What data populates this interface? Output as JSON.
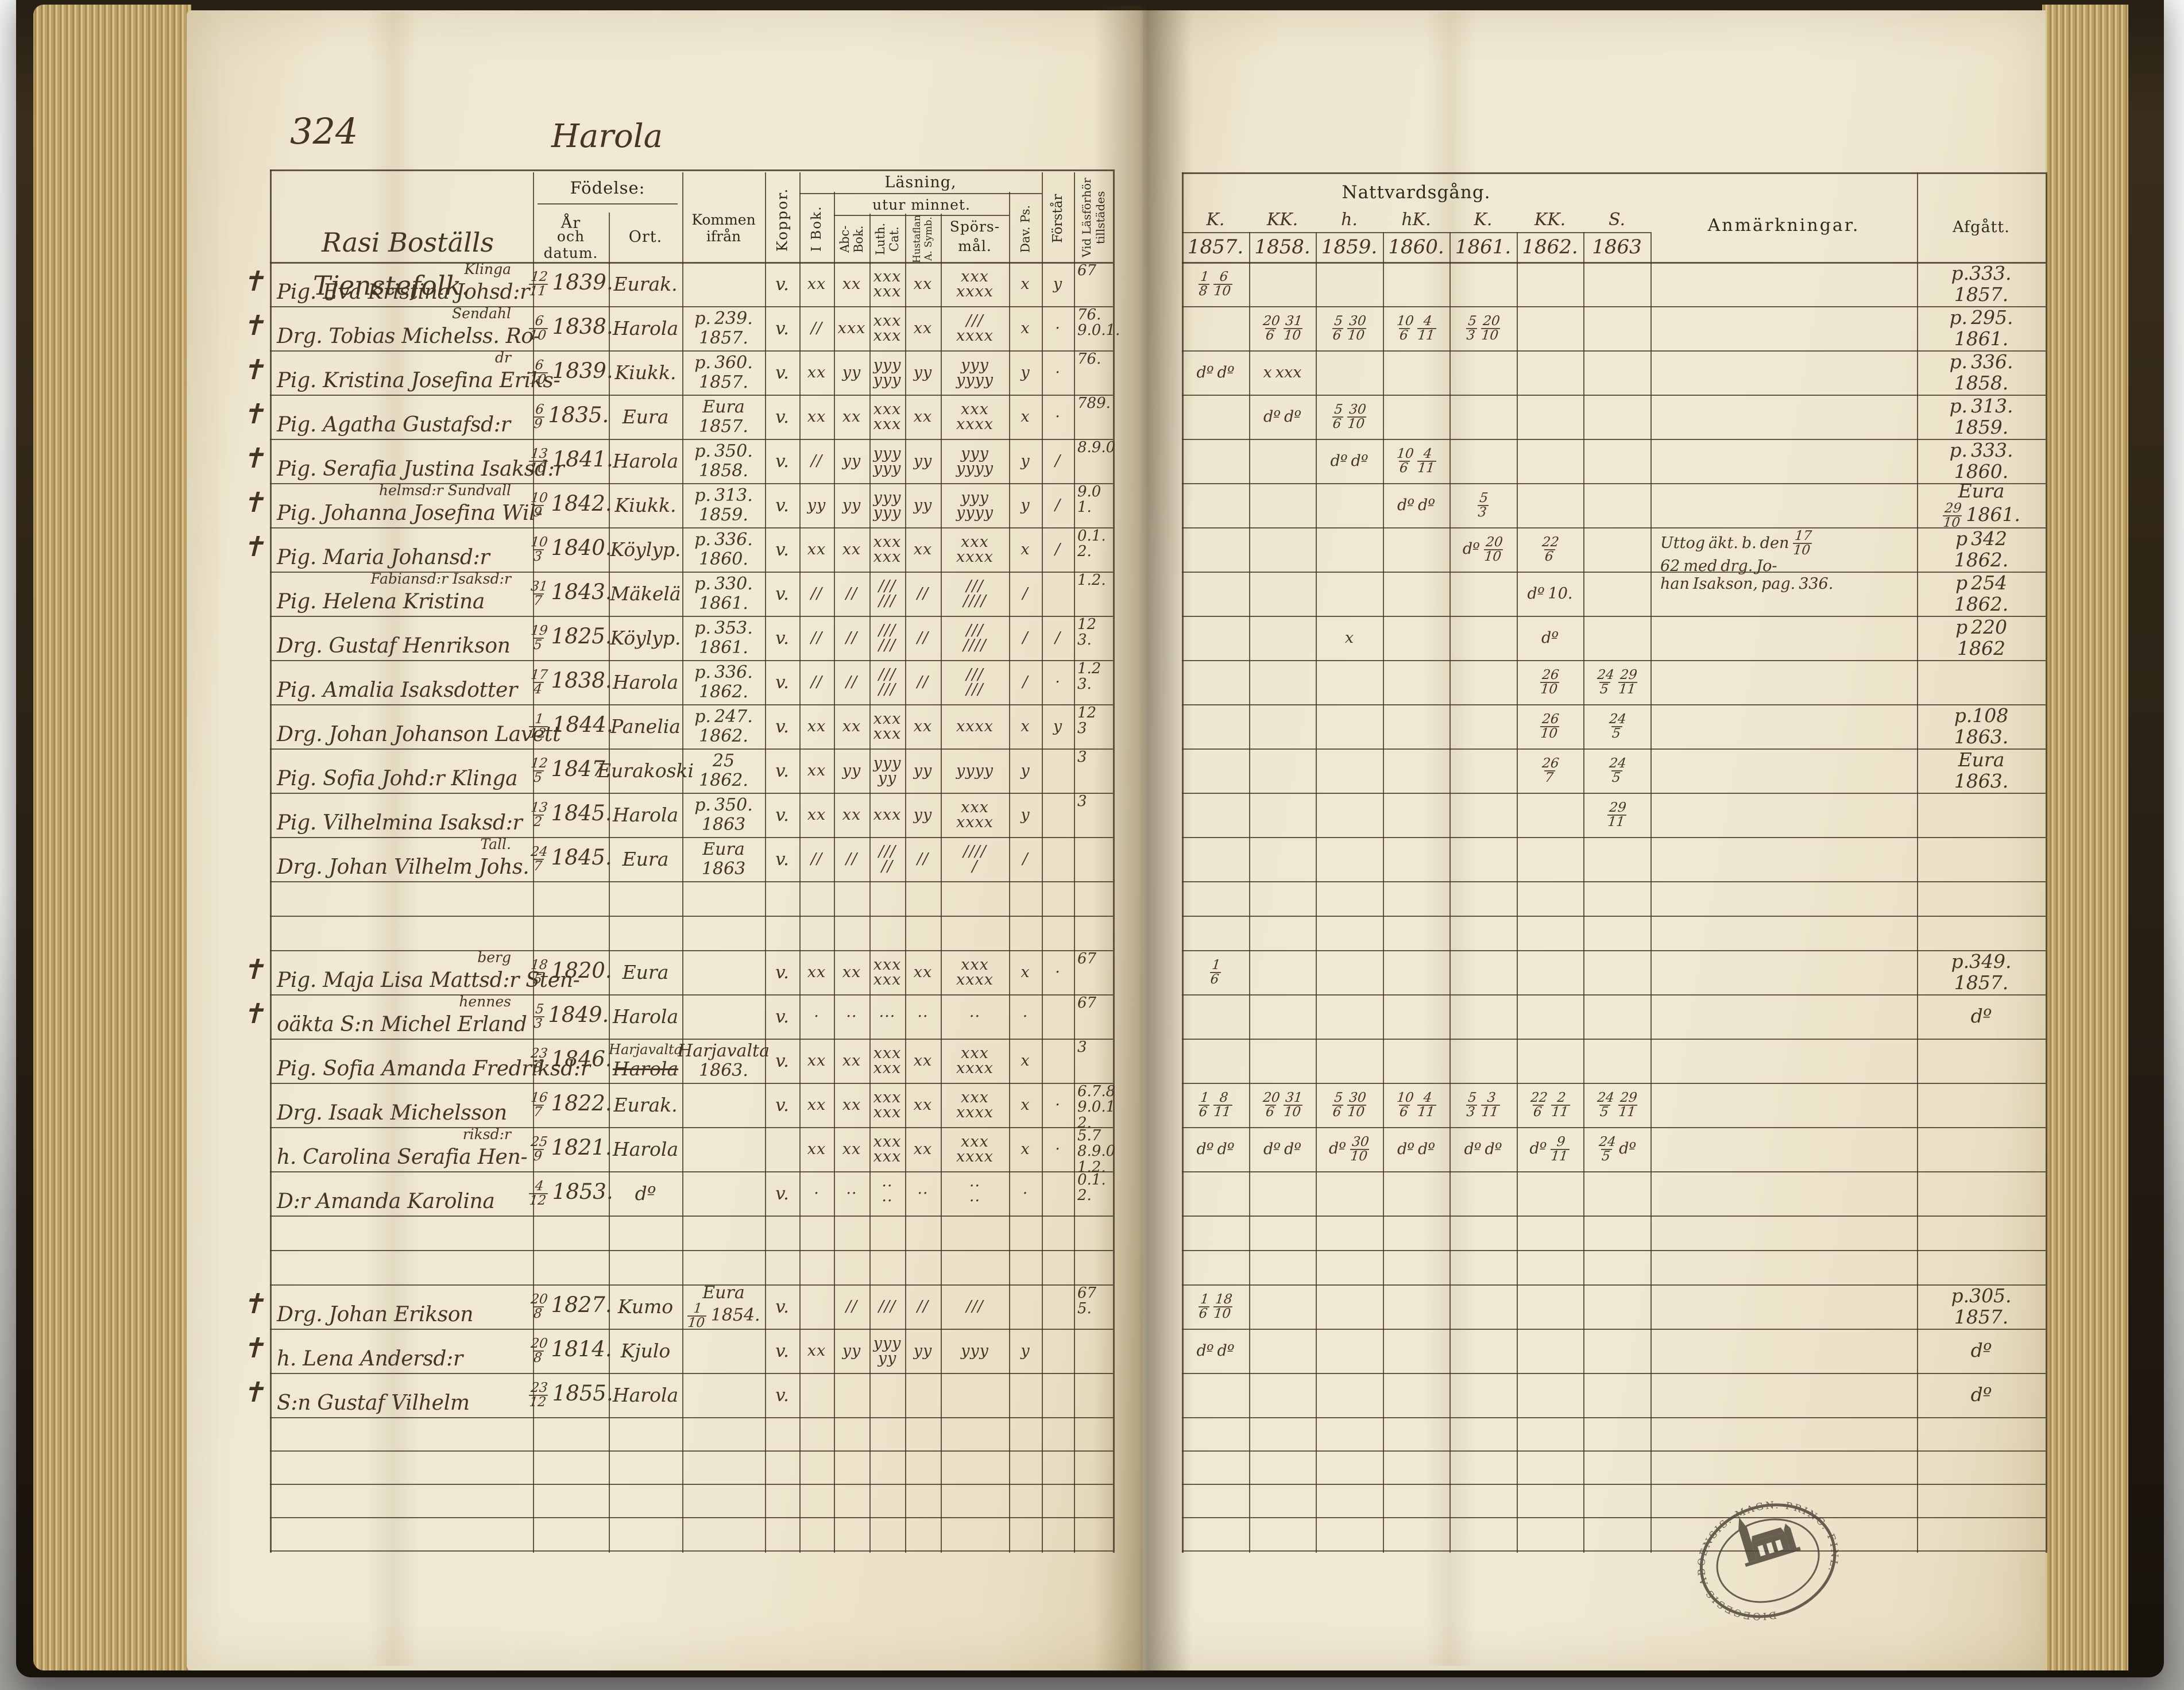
{
  "page": {
    "number": "324",
    "title": "Harola"
  },
  "left_header": {
    "group_label_line1": "Rasi Boställs",
    "group_label_line2": "Tjenstefolk.",
    "fodelse": "Födelse:",
    "ar": "År",
    "och_datum": "och datum.",
    "ort": "Ort.",
    "kommen": "Kommen ifrån",
    "koppor": "Koppor.",
    "lasning": "Läsning,",
    "utur": "utur minnet.",
    "i_bok": "I Bok.",
    "abc": "Abc-Bok.",
    "luth": "Luth. Cat.",
    "hustaflan": "Hustaflan A. Symb.",
    "spors_1": "Spörs-",
    "spors_2": "mål.",
    "dav": "Dav. Ps.",
    "forstar": "Förstår",
    "vid": "Vid Läsförhör tillstädes"
  },
  "right_header": {
    "nattvard": "Nattvardsgång.",
    "year_marks": [
      "K.",
      "KK.",
      "h.",
      "hK.",
      "K.",
      "KK.",
      "S."
    ],
    "years": [
      "1857.",
      "1858.",
      "1859.",
      "1860.",
      "1861.",
      "1862.",
      "1863"
    ],
    "anmarkningar": "Anmärkningar.",
    "afgatt": "Afgått."
  },
  "stamp": {
    "text": "DIOECESIS ABOENSIS. MAGN. PRINC. FINL."
  },
  "rows": [
    {
      "mark": "✝",
      "over": "Klinga",
      "name": "Pig. Eva Kristina Johsd:r",
      "b": "12/11 1839.",
      "ort": "Eurak.",
      "kom": "",
      "kop": "v.",
      "rm": [
        "xx",
        "xx",
        "xxx xxx",
        "xx",
        "xxx xxxx",
        "x",
        "y"
      ],
      "till": "67",
      "comm": [
        "1/8 6/10",
        "",
        "",
        "",
        "",
        "",
        ""
      ],
      "anm": "",
      "af": "p.333.|1857."
    },
    {
      "mark": "✝",
      "over": "Sendahl",
      "name": "Drg. Tobias Michelss. Ro-",
      "b": "6/10 1838.",
      "ort": "Harola",
      "kom": "p. 239.|1857.",
      "kop": "v.",
      "rm": [
        "//",
        "xxx",
        "xxx xxx",
        "xx",
        "/// xxxx",
        "x",
        "·"
      ],
      "till": "76.|9.0.1.",
      "comm": [
        "",
        "20/6 31/10",
        "5/6 30/10",
        "10/6 4/11",
        "5/3 20/10",
        "",
        ""
      ],
      "anm": "",
      "af": "p. 295.|1861."
    },
    {
      "mark": "✝",
      "over": "dr",
      "name": "Pig. Kristina Josefina Eriks-",
      "b": "6/10 1839.",
      "ort": "Kiukk.",
      "kom": "p. 360.|1857.",
      "kop": "v.",
      "rm": [
        "xx",
        "yy",
        "yyy yyy",
        "yy",
        "yyy yyyy",
        "y",
        "·"
      ],
      "till": "76.",
      "comm": [
        "dº dº",
        "x xxx",
        "",
        "",
        "",
        "",
        ""
      ],
      "anm": "",
      "af": "p. 336.|1858."
    },
    {
      "mark": "✝",
      "over": "",
      "name": "Pig. Agatha Gustafsd:r",
      "b": "6/9 1835.",
      "ort": "Eura",
      "kom": "Eura|1857.",
      "kop": "v.",
      "rm": [
        "xx",
        "xx",
        "xxx xxx",
        "xx",
        "xxx xxxx",
        "x",
        "·"
      ],
      "till": "789.",
      "comm": [
        "",
        "dº dº",
        "5/6 30/10",
        "",
        "",
        "",
        ""
      ],
      "anm": "",
      "af": "p. 313.|1859."
    },
    {
      "mark": "✝",
      "over": "",
      "name": "Pig. Serafia Justina Isaksd:r",
      "b": "13/10 1841.",
      "ort": "Harola",
      "kom": "p. 350.|1858.",
      "kop": "v.",
      "rm": [
        "//",
        "yy",
        "yyy yyy",
        "yy",
        "yyy yyyy",
        "y",
        "/"
      ],
      "till": "8.9.0",
      "comm": [
        "",
        "",
        "dº dº",
        "10/6 4/11",
        "",
        "",
        ""
      ],
      "anm": "",
      "af": "p. 333.|1860."
    },
    {
      "mark": "✝",
      "over": "helmsd:r Sundvall",
      "name": "Pig. Johanna Josefina Wil-",
      "b": "10/9 1842.",
      "ort": "Kiukk.",
      "kom": "p. 313.|1859.",
      "kop": "v.",
      "rm": [
        "yy",
        "yy",
        "yyy yyy",
        "yy",
        "yyy yyyy",
        "y",
        "/"
      ],
      "till": "9.0|1.",
      "comm": [
        "",
        "",
        "",
        "dº dº",
        "5/3",
        "",
        ""
      ],
      "anm": "",
      "af": "Eura|29/10 1861."
    },
    {
      "mark": "✝",
      "over": "",
      "name": "Pig. Maria Johansd:r",
      "b": "10/3 1840.",
      "ort": "Köylyp.",
      "kom": "p. 336.|1860.",
      "kop": "v.",
      "rm": [
        "xx",
        "xx",
        "xxx xxx",
        "xx",
        "xxx xxxx",
        "x",
        "/"
      ],
      "till": "0.1.|2.",
      "comm": [
        "",
        "",
        "",
        "",
        "dº 20/10",
        "22/6",
        ""
      ],
      "anm": "Uttog äkt. b. den 17/10 62 med drg. Jo-|han Isakson, pag. 336.",
      "af": "p 342|1862."
    },
    {
      "mark": "",
      "over": "Fabiansd:r Isaksd:r",
      "name": "Pig. Helena Kristina",
      "b": "31/7 1843.",
      "ort": "Mäkelä",
      "kom": "p. 330.|1861.",
      "kop": "v.",
      "rm": [
        "//",
        "//",
        "/// ///",
        "//",
        "/// ////",
        "/",
        ""
      ],
      "till": "1.2.",
      "comm": [
        "",
        "",
        "",
        "",
        "",
        "dº 10.",
        ""
      ],
      "anm": "",
      "af": "p 254|1862."
    },
    {
      "mark": "",
      "over": "",
      "name": "Drg. Gustaf Henrikson",
      "b": "19/5 1825.",
      "ort": "Köylyp.",
      "kom": "p. 353.|1861.",
      "kop": "v.",
      "rm": [
        "//",
        "//",
        "/// ///",
        "//",
        "/// ////",
        "/",
        "/"
      ],
      "till": "12|3.",
      "comm": [
        "",
        "",
        "x",
        "",
        "",
        "dº",
        ""
      ],
      "anm": "",
      "af": "p 220|1862"
    },
    {
      "mark": "",
      "over": "",
      "name": "Pig. Amalia Isaksdotter",
      "b": "17/4 1838.",
      "ort": "Harola",
      "kom": "p. 336.|1862.",
      "kop": "v.",
      "rm": [
        "//",
        "//",
        "/// ///",
        "//",
        "/// ///",
        "/",
        "·"
      ],
      "till": "1.2|3.",
      "comm": [
        "",
        "",
        "",
        "",
        "",
        "26/10",
        "24/5 29/11"
      ],
      "anm": "",
      "af": ""
    },
    {
      "mark": "",
      "over": "",
      "name": "Drg. Johan Johanson Lavett",
      "b": "1/12 1844.",
      "ort": "Panelia",
      "kom": "p. 247.|1862.",
      "kop": "v.",
      "rm": [
        "xx",
        "xx",
        "xxx xxx",
        "xx",
        "xxxx",
        "x",
        "y"
      ],
      "till": "12|3",
      "comm": [
        "",
        "",
        "",
        "",
        "",
        "26/10",
        "24/5"
      ],
      "anm": "",
      "af": "p.108|1863."
    },
    {
      "mark": "",
      "over": "",
      "name": "Pig. Sofia Johd:r Klinga",
      "b": "12/5 1847.",
      "ort": "Eurakoski",
      "kom": "25|1862.",
      "kop": "v.",
      "rm": [
        "xx",
        "yy",
        "yyy yy",
        "yy",
        "yyyy",
        "y",
        ""
      ],
      "till": "3",
      "comm": [
        "",
        "",
        "",
        "",
        "",
        "26/7",
        "24/5"
      ],
      "anm": "",
      "af": "Eura|1863."
    },
    {
      "mark": "",
      "over": "",
      "name": "Pig. Vilhelmina Isaksd:r",
      "b": "13/2 1845.",
      "ort": "Harola",
      "kom": "p. 350.|1863",
      "kop": "v.",
      "rm": [
        "xx",
        "xx",
        "xxx",
        "yy",
        "xxx xxxx",
        "y",
        ""
      ],
      "till": "3",
      "comm": [
        "",
        "",
        "",
        "",
        "",
        "",
        "29/11"
      ],
      "anm": "",
      "af": ""
    },
    {
      "mark": "",
      "over": "Tall.",
      "name": "Drg. Johan Vilhelm Johs.",
      "b": "24/7 1845.",
      "ort": "Eura",
      "kom": "Eura|1863",
      "kop": "v.",
      "rm": [
        "//",
        "//",
        "/// //",
        "//",
        "//// /",
        "/",
        ""
      ],
      "till": "",
      "comm": [
        "",
        "",
        "",
        "",
        "",
        "",
        ""
      ],
      "anm": "",
      "af": ""
    },
    {
      "blank": true,
      "h": 60
    },
    {
      "blank": true,
      "h": 60
    },
    {
      "mark": "✝",
      "over": "berg",
      "name": "Pig. Maja Lisa Mattsd:r Sten-",
      "b": "18/5 1820.",
      "ort": "Eura",
      "kom": "",
      "kop": "v.",
      "rm": [
        "xx",
        "xx",
        "xxx xxx",
        "xx",
        "xxx xxxx",
        "x",
        "·"
      ],
      "till": "67",
      "comm": [
        "1/6",
        "",
        "",
        "",
        "",
        "",
        ""
      ],
      "anm": "",
      "af": "p.349.|1857."
    },
    {
      "mark": "✝",
      "over": "hennes",
      "name": "oäkta S:n Michel Erland",
      "b": "5/3 1849.",
      "ort": "Harola",
      "kom": "",
      "kop": "v.",
      "rm": [
        "·",
        "··",
        "···",
        "··",
        "··",
        "·",
        ""
      ],
      "till": "67",
      "comm": [
        "",
        "",
        "",
        "",
        "",
        "",
        ""
      ],
      "anm": "",
      "af": "dº"
    },
    {
      "mark": "",
      "over": "",
      "name": "Pig. Sofia Amanda Fredriksd:r",
      "b": "23/8 1846.",
      "ort": "Harola",
      "ort_over": "Harjavalta",
      "ort_struck": true,
      "kom": "Harjavalta|1863.",
      "kop": "v.",
      "rm": [
        "xx",
        "xx",
        "xxx xxx",
        "xx",
        "xxx xxxx",
        "x",
        ""
      ],
      "till": "3",
      "comm": [
        "",
        "",
        "",
        "",
        "",
        "",
        ""
      ],
      "anm": "",
      "af": ""
    },
    {
      "mark": "",
      "over": "",
      "name": "Drg. Isaak Michelsson",
      "b": "16/7 1822.",
      "ort": "Eurak.",
      "kom": "",
      "kop": "v.",
      "rm": [
        "xx",
        "xx",
        "xxx xxx",
        "xx",
        "xxx xxxx",
        "x",
        "·"
      ],
      "till": "6.7.8|9.0.1|2.",
      "comm": [
        "1/6 8/11",
        "20/6 31/10",
        "5/6 30/10",
        "10/6 4/11",
        "5/3 3/11",
        "22/6 2/11",
        "24/5 29/11"
      ],
      "anm": "",
      "af": ""
    },
    {
      "mark": "",
      "over": "riksd:r",
      "name": "h. Carolina Serafia Hen-",
      "b": "25/9 1821.",
      "ort": "Harola",
      "kom": "",
      "kop": "",
      "rm": [
        "xx",
        "xx",
        "xxx xxx",
        "xx",
        "xxx xxxx",
        "x",
        "·"
      ],
      "till": "5.7|8.9.0|1.2.",
      "comm": [
        "dº dº",
        "dº dº",
        "dº 30/10",
        "dº dº",
        "dº dº",
        "dº 9/11",
        "24/5 dº"
      ],
      "anm": "",
      "af": ""
    },
    {
      "mark": "",
      "over": "",
      "name": "D:r Amanda Karolina",
      "b": "4/12 1853.",
      "ort": "dº",
      "kom": "",
      "kop": "v.",
      "rm": [
        "·",
        "··",
        "·· ··",
        "··",
        "·· ··",
        "·",
        ""
      ],
      "till": "0.1.|2.",
      "comm": [
        "",
        "",
        "",
        "",
        "",
        "",
        ""
      ],
      "anm": "",
      "af": ""
    },
    {
      "blank": true,
      "h": 60
    },
    {
      "blank": true,
      "h": 60
    },
    {
      "mark": "✝",
      "over": "",
      "name": "Drg. Johan Erikson",
      "b": "20/8 1827.",
      "ort": "Kumo",
      "kom": "Eura|1/10 1854.",
      "kop": "v.",
      "rm": [
        "",
        "//",
        "///",
        "//",
        "///",
        "",
        ""
      ],
      "till": "67|5.",
      "comm": [
        "1/6 18/10",
        "",
        "",
        "",
        "",
        "",
        ""
      ],
      "anm": "",
      "af": "p.305.|1857."
    },
    {
      "mark": "✝",
      "over": "",
      "name": "h. Lena Andersd:r",
      "b": "20/8 1814.",
      "ort": "Kjulo",
      "kom": "",
      "kop": "v.",
      "rm": [
        "xx",
        "yy",
        "yyy yy",
        "yy",
        "yyy",
        "y",
        ""
      ],
      "till": "",
      "comm": [
        "dº dº",
        "",
        "",
        "",
        "",
        "",
        ""
      ],
      "anm": "",
      "af": "dº"
    },
    {
      "mark": "✝",
      "over": "",
      "name": "S:n Gustaf Vilhelm",
      "b": "23/12 1855.",
      "ort": "Harola",
      "kom": "",
      "kop": "v.",
      "rm": [
        "",
        "",
        "",
        "",
        "",
        "",
        ""
      ],
      "till": "",
      "comm": [
        "",
        "",
        "",
        "",
        "",
        "",
        ""
      ],
      "anm": "",
      "af": "dº"
    },
    {
      "blank": true,
      "h": 58
    },
    {
      "blank": true,
      "h": 58
    },
    {
      "blank": true,
      "h": 58
    },
    {
      "blank": true,
      "h": 58
    }
  ]
}
